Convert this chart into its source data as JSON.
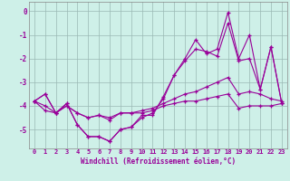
{
  "x": [
    0,
    1,
    2,
    3,
    4,
    5,
    6,
    7,
    8,
    9,
    10,
    11,
    12,
    13,
    14,
    15,
    16,
    17,
    18,
    19,
    20,
    21,
    22,
    23
  ],
  "line1": [
    -3.8,
    -3.5,
    -4.3,
    -3.9,
    -4.8,
    -5.3,
    -5.3,
    -5.5,
    -5.0,
    -4.9,
    -4.5,
    -4.3,
    -3.7,
    -2.7,
    -2.0,
    -1.2,
    -1.8,
    -1.6,
    -0.05,
    -2.0,
    -1.0,
    -3.3,
    -1.5,
    -3.9
  ],
  "line2": [
    -3.8,
    -3.5,
    -4.3,
    -3.9,
    -4.8,
    -5.3,
    -5.3,
    -5.5,
    -5.0,
    -4.9,
    -4.4,
    -4.4,
    -3.6,
    -2.7,
    -2.1,
    -1.6,
    -1.7,
    -1.9,
    -0.5,
    -2.1,
    -2.0,
    -3.3,
    -1.5,
    -3.9
  ],
  "line3": [
    -3.8,
    -4.0,
    -4.3,
    -4.0,
    -4.3,
    -4.5,
    -4.4,
    -4.5,
    -4.3,
    -4.3,
    -4.2,
    -4.1,
    -3.9,
    -3.7,
    -3.5,
    -3.4,
    -3.2,
    -3.0,
    -2.8,
    -3.5,
    -3.4,
    -3.5,
    -3.7,
    -3.8
  ],
  "line4": [
    -3.8,
    -4.2,
    -4.3,
    -4.0,
    -4.3,
    -4.5,
    -4.4,
    -4.6,
    -4.3,
    -4.3,
    -4.3,
    -4.2,
    -4.0,
    -3.9,
    -3.8,
    -3.8,
    -3.7,
    -3.6,
    -3.5,
    -4.1,
    -4.0,
    -4.0,
    -4.0,
    -3.9
  ],
  "background_color": "#cef0e8",
  "grid_color": "#9ab8b4",
  "line_color": "#990099",
  "xlabel": "Windchill (Refroidissement éolien,°C)",
  "xlim": [
    -0.5,
    23.5
  ],
  "ylim": [
    -5.8,
    0.4
  ],
  "yticks": [
    0,
    -1,
    -2,
    -3,
    -4,
    -5
  ],
  "xticks": [
    0,
    1,
    2,
    3,
    4,
    5,
    6,
    7,
    8,
    9,
    10,
    11,
    12,
    13,
    14,
    15,
    16,
    17,
    18,
    19,
    20,
    21,
    22,
    23
  ]
}
